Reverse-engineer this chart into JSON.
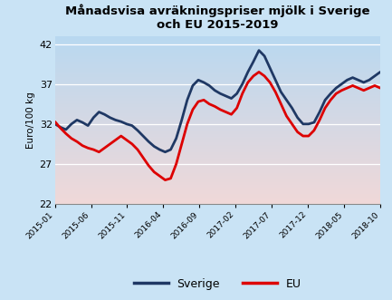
{
  "title": "Månadsvisa avräkningspriser mjölk i Sverige\noch EU 2015-2019",
  "ylabel": "Euro/100 kg",
  "ylim": [
    22,
    43
  ],
  "yticks": [
    22,
    27,
    32,
    37,
    42
  ],
  "x_labels": [
    "2015-01",
    "2015-06",
    "2015-11",
    "2016-04",
    "2016-09",
    "2017-02",
    "2017-07",
    "2017-12",
    "2018-05",
    "2018-10"
  ],
  "fig_facecolor": "#c9e3f5",
  "plot_bg_top": "#b8d8f0",
  "plot_bg_bottom": "#f0d8d8",
  "sverige_color": "#1f3864",
  "eu_color": "#dd0000",
  "line_width": 2.0,
  "sverige_data": [
    32.0,
    31.6,
    31.3,
    32.0,
    32.5,
    32.2,
    31.8,
    32.8,
    33.5,
    33.2,
    32.8,
    32.5,
    32.3,
    32.0,
    31.8,
    31.2,
    30.5,
    29.8,
    29.2,
    28.8,
    28.5,
    28.8,
    30.2,
    32.5,
    35.0,
    36.8,
    37.5,
    37.2,
    36.8,
    36.2,
    35.8,
    35.5,
    35.2,
    35.8,
    37.0,
    38.5,
    39.8,
    41.2,
    40.5,
    39.0,
    37.5,
    36.0,
    35.0,
    34.0,
    32.8,
    32.0,
    32.0,
    32.2,
    33.5,
    35.0,
    35.8,
    36.5,
    37.0,
    37.5,
    37.8,
    37.5,
    37.2,
    37.5,
    38.0,
    38.5
  ],
  "eu_data": [
    32.3,
    31.5,
    30.8,
    30.2,
    29.8,
    29.3,
    29.0,
    28.8,
    28.5,
    29.0,
    29.5,
    30.0,
    30.5,
    30.0,
    29.5,
    28.8,
    27.8,
    26.8,
    26.0,
    25.5,
    25.0,
    25.2,
    27.0,
    29.5,
    32.0,
    33.8,
    34.8,
    35.0,
    34.5,
    34.2,
    33.8,
    33.5,
    33.2,
    34.0,
    35.8,
    37.2,
    38.0,
    38.5,
    38.0,
    37.2,
    36.0,
    34.5,
    33.0,
    32.0,
    31.0,
    30.5,
    30.5,
    31.2,
    32.5,
    34.0,
    35.0,
    35.8,
    36.2,
    36.5,
    36.8,
    36.5,
    36.2,
    36.5,
    36.8,
    36.5
  ]
}
